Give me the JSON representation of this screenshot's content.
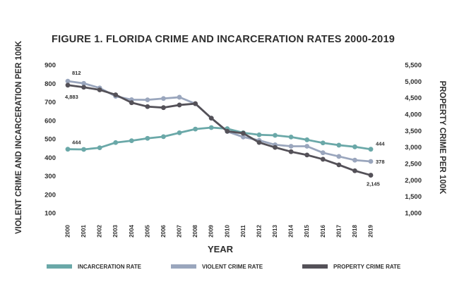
{
  "chart_data": {
    "type": "line",
    "title": "FIGURE 1. FLORIDA CRIME AND INCARCERATION RATES 2000-2019",
    "xlabel": "YEAR",
    "ylabel": "VIOLENT CRIME AND INCARCERATION PER 100K",
    "y2label": "PROPERTY CRIME PER 100K",
    "x": [
      "2000",
      "2001",
      "2002",
      "2003",
      "2004",
      "2005",
      "2006",
      "2007",
      "2008",
      "2009",
      "2010",
      "2011",
      "2012",
      "2013",
      "2014",
      "2015",
      "2016",
      "2017",
      "2018",
      "2019"
    ],
    "ylim": [
      100,
      900
    ],
    "yticks": [
      "100",
      "200",
      "300",
      "400",
      "500",
      "600",
      "700",
      "800",
      "900"
    ],
    "y2lim": [
      1000,
      5500
    ],
    "y2ticks": [
      "1,000",
      "1,500",
      "2,000",
      "2,500",
      "3,000",
      "3,500",
      "4,000",
      "4,500",
      "5,000",
      "5,500"
    ],
    "grid": false,
    "legend_position": "bottom",
    "series": [
      {
        "name": "INCARCERATION RATE",
        "axis": "left",
        "color": "#6aa8a8",
        "values": [
          444,
          443,
          452,
          480,
          490,
          503,
          512,
          533,
          553,
          561,
          555,
          533,
          522,
          519,
          510,
          495,
          478,
          466,
          457,
          444
        ]
      },
      {
        "name": "VIOLENT CRIME RATE",
        "axis": "left",
        "color": "#9aa6bd",
        "values": [
          812,
          800,
          775,
          730,
          712,
          711,
          718,
          725,
          690,
          612,
          540,
          510,
          492,
          468,
          460,
          460,
          425,
          405,
          385,
          378
        ]
      },
      {
        "name": "PROPERTY CRIME RATE",
        "axis": "right",
        "color": "#545158",
        "values": [
          4883,
          4820,
          4740,
          4590,
          4350,
          4230,
          4200,
          4280,
          4320,
          3880,
          3480,
          3420,
          3140,
          2990,
          2860,
          2760,
          2630,
          2460,
          2280,
          2145
        ]
      }
    ],
    "annotations": [
      {
        "text": "812",
        "series": "VIOLENT CRIME RATE",
        "x": "2000",
        "value": 812
      },
      {
        "text": "4,883",
        "series": "PROPERTY CRIME RATE",
        "x": "2000",
        "value": 4883
      },
      {
        "text": "444",
        "series": "INCARCERATION RATE",
        "x": "2000",
        "value": 444
      },
      {
        "text": "444",
        "series": "INCARCERATION RATE",
        "x": "2019",
        "value": 444
      },
      {
        "text": "378",
        "series": "VIOLENT CRIME RATE",
        "x": "2019",
        "value": 378
      },
      {
        "text": "2,145",
        "series": "PROPERTY CRIME RATE",
        "x": "2019",
        "value": 2145
      }
    ]
  }
}
